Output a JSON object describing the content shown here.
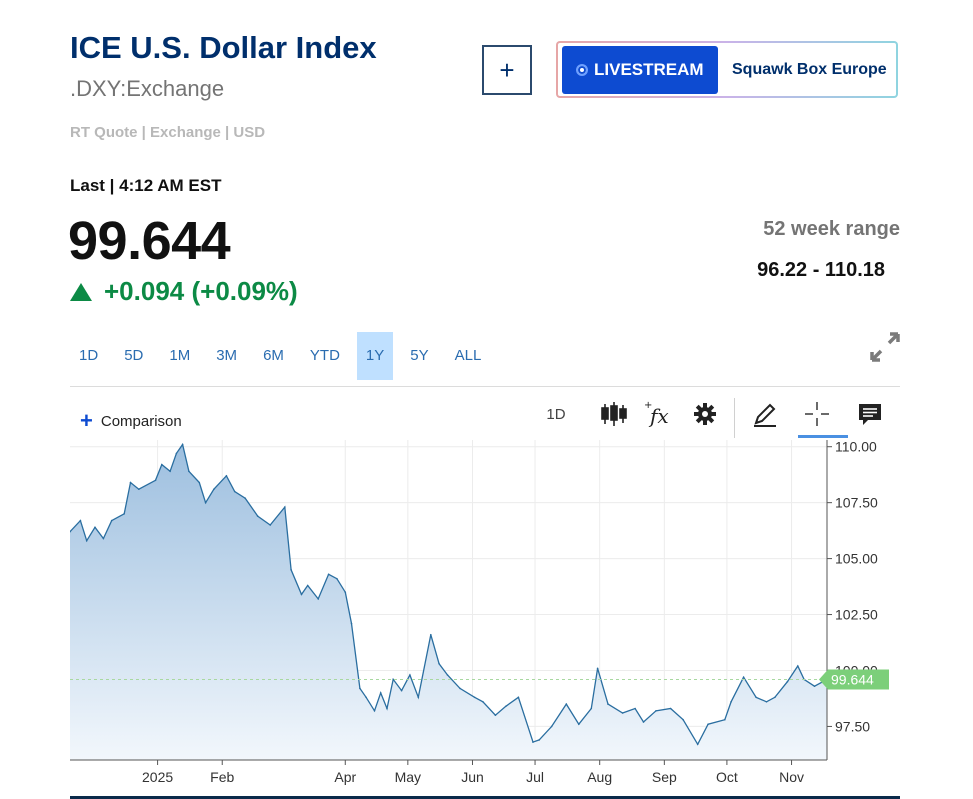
{
  "header": {
    "title": "ICE U.S. Dollar Index",
    "symbol": ".DXY:Exchange",
    "meta": "RT Quote | Exchange | USD",
    "add_label": "+"
  },
  "live": {
    "button_label": "LIVESTREAM",
    "show_name": "Squawk Box Europe"
  },
  "quote": {
    "last_label": "Last | 4:12 AM EST",
    "price": "99.644",
    "change": "+0.094 (+0.09%)",
    "week52_label": "52 week range",
    "week52_value": "96.22 - 110.18"
  },
  "ranges": [
    "1D",
    "5D",
    "1M",
    "3M",
    "6M",
    "YTD",
    "1Y",
    "5Y",
    "ALL"
  ],
  "active_range": "1Y",
  "toolbar": {
    "comparison_label": "Comparison",
    "interval_label": "1D",
    "icons": [
      "candlestick-icon",
      "fx-studies-icon",
      "gear-icon",
      "pencil-icon",
      "crosshair-icon",
      "comment-icon"
    ]
  },
  "colors": {
    "brand_navy": "#002f6c",
    "link_blue": "#2a6cb0",
    "live_blue": "#0d4bd1",
    "up_green": "#0c8a45",
    "line": "#2a6ea0",
    "price_tag": "#7ccf7a"
  },
  "chart_data": {
    "type": "area",
    "title": "",
    "xlabel": "",
    "ylabel": "",
    "ylim": [
      96.0,
      110.3
    ],
    "y_ticks": [
      97.5,
      100.0,
      102.5,
      105.0,
      107.5,
      110.0
    ],
    "y_tick_labels": [
      "97.50",
      "100.00",
      "102.50",
      "105.00",
      "107.50",
      "110.00"
    ],
    "x_tick_labels": [
      "2025",
      "Feb",
      "Apr",
      "May",
      "Jun",
      "Jul",
      "Aug",
      "Sep",
      "Oct",
      "Nov"
    ],
    "x_tick_dates": [
      "2025-01-01",
      "2025-02-01",
      "2025-04-01",
      "2025-05-01",
      "2025-06-01",
      "2025-07-01",
      "2025-08-01",
      "2025-09-01",
      "2025-10-01",
      "2025-11-01"
    ],
    "x_range": [
      "2024-11-20",
      "2025-11-18"
    ],
    "current_value_label": "99.644",
    "grid": true,
    "series": [
      {
        "name": "",
        "x": [
          "2024-11-20",
          "2024-11-25",
          "2024-11-28",
          "2024-12-02",
          "2024-12-06",
          "2024-12-10",
          "2024-12-16",
          "2024-12-19",
          "2024-12-23",
          "2024-12-31",
          "2025-01-03",
          "2025-01-07",
          "2025-01-10",
          "2025-01-13",
          "2025-01-16",
          "2025-01-21",
          "2025-01-24",
          "2025-01-28",
          "2025-02-03",
          "2025-02-07",
          "2025-02-12",
          "2025-02-18",
          "2025-02-24",
          "2025-03-03",
          "2025-03-06",
          "2025-03-11",
          "2025-03-14",
          "2025-03-19",
          "2025-03-24",
          "2025-03-28",
          "2025-04-01",
          "2025-04-04",
          "2025-04-08",
          "2025-04-11",
          "2025-04-15",
          "2025-04-18",
          "2025-04-21",
          "2025-04-24",
          "2025-04-28",
          "2025-05-02",
          "2025-05-06",
          "2025-05-12",
          "2025-05-16",
          "2025-05-20",
          "2025-05-26",
          "2025-06-02",
          "2025-06-06",
          "2025-06-12",
          "2025-06-17",
          "2025-06-23",
          "2025-06-30",
          "2025-07-03",
          "2025-07-09",
          "2025-07-16",
          "2025-07-22",
          "2025-07-28",
          "2025-07-31",
          "2025-08-05",
          "2025-08-12",
          "2025-08-18",
          "2025-08-22",
          "2025-08-28",
          "2025-09-04",
          "2025-09-10",
          "2025-09-17",
          "2025-09-22",
          "2025-09-30",
          "2025-10-03",
          "2025-10-09",
          "2025-10-15",
          "2025-10-20",
          "2025-10-24",
          "2025-10-30",
          "2025-11-04",
          "2025-11-07",
          "2025-11-12",
          "2025-11-18"
        ],
        "values": [
          106.2,
          106.7,
          105.8,
          106.4,
          105.9,
          106.7,
          107.0,
          108.4,
          108.1,
          108.5,
          109.2,
          108.9,
          109.7,
          110.1,
          108.9,
          108.4,
          107.5,
          108.1,
          108.7,
          108.0,
          107.7,
          106.9,
          106.5,
          107.3,
          104.5,
          103.4,
          103.8,
          103.2,
          104.3,
          104.1,
          103.5,
          102.1,
          99.2,
          98.8,
          98.2,
          99.0,
          98.3,
          99.6,
          99.1,
          99.8,
          98.8,
          101.6,
          100.3,
          99.8,
          99.2,
          98.8,
          98.6,
          98.0,
          98.4,
          98.8,
          96.8,
          96.9,
          97.5,
          98.5,
          97.6,
          98.3,
          100.1,
          98.5,
          98.1,
          98.3,
          97.7,
          98.2,
          98.3,
          97.8,
          96.7,
          97.6,
          97.8,
          98.6,
          99.7,
          98.8,
          98.6,
          98.8,
          99.5,
          100.2,
          99.6,
          99.3,
          99.6
        ]
      }
    ]
  }
}
